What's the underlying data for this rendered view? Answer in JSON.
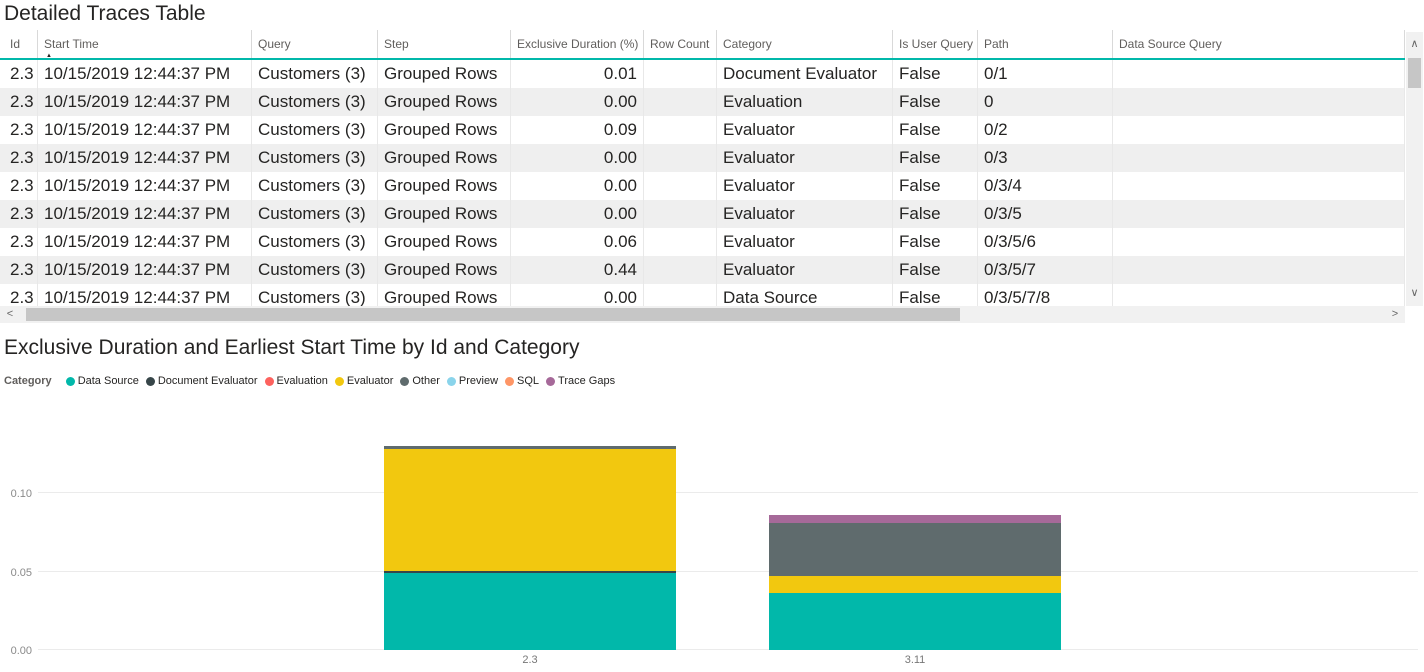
{
  "icons": {
    "scroll_left": "<",
    "scroll_right": ">",
    "scroll_up": "∧",
    "scroll_down": "∨",
    "sort_ascending": "▲"
  },
  "theme": {
    "header_underline_color": "#01B8AA",
    "row_alt_color": "#efefef",
    "text_color": "#252423",
    "header_text_color": "#605E5C"
  },
  "chart_data": [
    {
      "type": "table",
      "title": "Detailed Traces Table",
      "sort": {
        "column": "Start Time",
        "direction": "ascending"
      },
      "columns": [
        "Id",
        "Start Time",
        "Query",
        "Step",
        "Exclusive Duration (%)",
        "Row Count",
        "Category",
        "Is User Query",
        "Path",
        "Data Source Query"
      ],
      "rows": [
        [
          "2.3",
          "10/15/2019 12:44:37 PM",
          "Customers (3)",
          "Grouped Rows",
          "0.01",
          "",
          "Document Evaluator",
          "False",
          "0/1",
          ""
        ],
        [
          "2.3",
          "10/15/2019 12:44:37 PM",
          "Customers (3)",
          "Grouped Rows",
          "0.00",
          "",
          "Evaluation",
          "False",
          "0",
          ""
        ],
        [
          "2.3",
          "10/15/2019 12:44:37 PM",
          "Customers (3)",
          "Grouped Rows",
          "0.09",
          "",
          "Evaluator",
          "False",
          "0/2",
          ""
        ],
        [
          "2.3",
          "10/15/2019 12:44:37 PM",
          "Customers (3)",
          "Grouped Rows",
          "0.00",
          "",
          "Evaluator",
          "False",
          "0/3",
          ""
        ],
        [
          "2.3",
          "10/15/2019 12:44:37 PM",
          "Customers (3)",
          "Grouped Rows",
          "0.00",
          "",
          "Evaluator",
          "False",
          "0/3/4",
          ""
        ],
        [
          "2.3",
          "10/15/2019 12:44:37 PM",
          "Customers (3)",
          "Grouped Rows",
          "0.00",
          "",
          "Evaluator",
          "False",
          "0/3/5",
          ""
        ],
        [
          "2.3",
          "10/15/2019 12:44:37 PM",
          "Customers (3)",
          "Grouped Rows",
          "0.06",
          "",
          "Evaluator",
          "False",
          "0/3/5/6",
          ""
        ],
        [
          "2.3",
          "10/15/2019 12:44:37 PM",
          "Customers (3)",
          "Grouped Rows",
          "0.44",
          "",
          "Evaluator",
          "False",
          "0/3/5/7",
          ""
        ],
        [
          "2.3",
          "10/15/2019 12:44:37 PM",
          "Customers (3)",
          "Grouped Rows",
          "0.00",
          "",
          "Data Source",
          "False",
          "0/3/5/7/8",
          ""
        ]
      ]
    },
    {
      "type": "bar",
      "variant": "stacked-column",
      "title": "Exclusive Duration and Earliest Start Time by Id and Category",
      "legend_title": "Category",
      "legend_position": "top-left",
      "legend": [
        "Data Source",
        "Document Evaluator",
        "Evaluation",
        "Evaluator",
        "Other",
        "Preview",
        "SQL",
        "Trace Gaps"
      ],
      "colors": {
        "Data Source": "#01B8AA",
        "Document Evaluator": "#374649",
        "Evaluation": "#FD625E",
        "Evaluator": "#F2C80F",
        "Other": "#5F6B6D",
        "Preview": "#8AD4EB",
        "SQL": "#FE9666",
        "Trace Gaps": "#A66999"
      },
      "categories": [
        "2.3",
        "3.11"
      ],
      "series": [
        {
          "name": "Data Source",
          "values": [
            0.049,
            0.036
          ]
        },
        {
          "name": "Document Evaluator",
          "values": [
            0.001,
            0.0
          ]
        },
        {
          "name": "Evaluation",
          "values": [
            0.0,
            0.0
          ]
        },
        {
          "name": "Evaluator",
          "values": [
            0.078,
            0.011
          ]
        },
        {
          "name": "Other",
          "values": [
            0.002,
            0.034
          ]
        },
        {
          "name": "Preview",
          "values": [
            0.0,
            0.0
          ]
        },
        {
          "name": "SQL",
          "values": [
            0.0,
            0.0
          ]
        },
        {
          "name": "Trace Gaps",
          "values": [
            0.0,
            0.005
          ]
        }
      ],
      "totals": [
        0.13,
        0.086
      ],
      "yticks": [
        0.0,
        0.05,
        0.1
      ],
      "ylim": [
        0,
        0.134
      ],
      "grid": true
    }
  ]
}
